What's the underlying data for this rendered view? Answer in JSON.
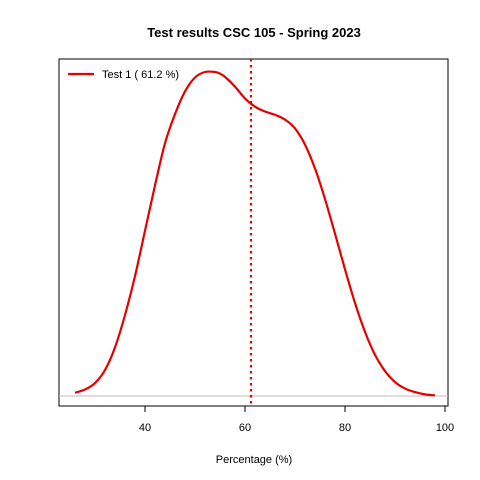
{
  "chart_data": {
    "type": "line",
    "title": "Test results CSC 105 - Spring 2023",
    "xlabel": "Percentage (%)",
    "ylabel": "",
    "xlim": [
      25,
      100
    ],
    "ylim": [
      0,
      1.0
    ],
    "xticks": [
      40,
      60,
      80,
      100
    ],
    "grid": false,
    "legend_position": "top-left",
    "baseline": 0,
    "series": [
      {
        "name": "Test 1 ( 61.2 %)",
        "color": "#e60000",
        "style": "solid",
        "x": [
          26,
          28,
          30,
          32,
          34,
          36,
          38,
          40,
          42,
          44,
          46,
          48,
          50,
          52,
          54,
          55,
          56,
          58,
          60,
          62,
          64,
          66,
          68,
          70,
          72,
          74,
          76,
          78,
          80,
          82,
          84,
          86,
          88,
          90,
          92,
          94,
          96,
          98
        ],
        "y": [
          0.01,
          0.02,
          0.04,
          0.08,
          0.15,
          0.25,
          0.37,
          0.51,
          0.65,
          0.78,
          0.87,
          0.94,
          0.983,
          1.0,
          1.0,
          0.995,
          0.985,
          0.955,
          0.918,
          0.893,
          0.878,
          0.868,
          0.853,
          0.826,
          0.776,
          0.702,
          0.608,
          0.501,
          0.391,
          0.287,
          0.198,
          0.127,
          0.077,
          0.043,
          0.023,
          0.012,
          0.005,
          0.002
        ]
      }
    ],
    "reference_lines": [
      {
        "orientation": "vertical",
        "x": 61.2,
        "color": "#e60000",
        "style": "dotted"
      }
    ]
  }
}
